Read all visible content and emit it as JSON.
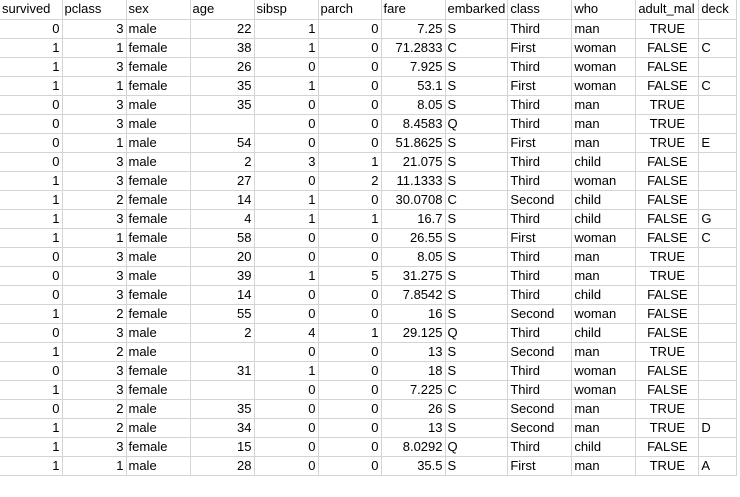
{
  "sheet": {
    "columns": [
      {
        "key": "survived",
        "label": "survived",
        "align": "num"
      },
      {
        "key": "pclass",
        "label": "pclass",
        "align": "num"
      },
      {
        "key": "sex",
        "label": "sex",
        "align": "txt"
      },
      {
        "key": "age",
        "label": "age",
        "align": "num"
      },
      {
        "key": "sibsp",
        "label": "sibsp",
        "align": "num"
      },
      {
        "key": "parch",
        "label": "parch",
        "align": "num"
      },
      {
        "key": "fare",
        "label": "fare",
        "align": "num"
      },
      {
        "key": "embarked",
        "label": "embarked",
        "align": "txt"
      },
      {
        "key": "class",
        "label": "class",
        "align": "txt"
      },
      {
        "key": "who",
        "label": "who",
        "align": "txt"
      },
      {
        "key": "adult_male",
        "label": "adult_mal",
        "align": "bool"
      },
      {
        "key": "deck",
        "label": "deck",
        "align": "txt"
      }
    ],
    "rows": [
      [
        "0",
        "3",
        "male",
        "22",
        "1",
        "0",
        "7.25",
        "S",
        "Third",
        "man",
        "TRUE",
        ""
      ],
      [
        "1",
        "1",
        "female",
        "38",
        "1",
        "0",
        "71.2833",
        "C",
        "First",
        "woman",
        "FALSE",
        "C"
      ],
      [
        "1",
        "3",
        "female",
        "26",
        "0",
        "0",
        "7.925",
        "S",
        "Third",
        "woman",
        "FALSE",
        ""
      ],
      [
        "1",
        "1",
        "female",
        "35",
        "1",
        "0",
        "53.1",
        "S",
        "First",
        "woman",
        "FALSE",
        "C"
      ],
      [
        "0",
        "3",
        "male",
        "35",
        "0",
        "0",
        "8.05",
        "S",
        "Third",
        "man",
        "TRUE",
        ""
      ],
      [
        "0",
        "3",
        "male",
        "",
        "0",
        "0",
        "8.4583",
        "Q",
        "Third",
        "man",
        "TRUE",
        ""
      ],
      [
        "0",
        "1",
        "male",
        "54",
        "0",
        "0",
        "51.8625",
        "S",
        "First",
        "man",
        "TRUE",
        "E"
      ],
      [
        "0",
        "3",
        "male",
        "2",
        "3",
        "1",
        "21.075",
        "S",
        "Third",
        "child",
        "FALSE",
        ""
      ],
      [
        "1",
        "3",
        "female",
        "27",
        "0",
        "2",
        "11.1333",
        "S",
        "Third",
        "woman",
        "FALSE",
        ""
      ],
      [
        "1",
        "2",
        "female",
        "14",
        "1",
        "0",
        "30.0708",
        "C",
        "Second",
        "child",
        "FALSE",
        ""
      ],
      [
        "1",
        "3",
        "female",
        "4",
        "1",
        "1",
        "16.7",
        "S",
        "Third",
        "child",
        "FALSE",
        "G"
      ],
      [
        "1",
        "1",
        "female",
        "58",
        "0",
        "0",
        "26.55",
        "S",
        "First",
        "woman",
        "FALSE",
        "C"
      ],
      [
        "0",
        "3",
        "male",
        "20",
        "0",
        "0",
        "8.05",
        "S",
        "Third",
        "man",
        "TRUE",
        ""
      ],
      [
        "0",
        "3",
        "male",
        "39",
        "1",
        "5",
        "31.275",
        "S",
        "Third",
        "man",
        "TRUE",
        ""
      ],
      [
        "0",
        "3",
        "female",
        "14",
        "0",
        "0",
        "7.8542",
        "S",
        "Third",
        "child",
        "FALSE",
        ""
      ],
      [
        "1",
        "2",
        "female",
        "55",
        "0",
        "0",
        "16",
        "S",
        "Second",
        "woman",
        "FALSE",
        ""
      ],
      [
        "0",
        "3",
        "male",
        "2",
        "4",
        "1",
        "29.125",
        "Q",
        "Third",
        "child",
        "FALSE",
        ""
      ],
      [
        "1",
        "2",
        "male",
        "",
        "0",
        "0",
        "13",
        "S",
        "Second",
        "man",
        "TRUE",
        ""
      ],
      [
        "0",
        "3",
        "female",
        "31",
        "1",
        "0",
        "18",
        "S",
        "Third",
        "woman",
        "FALSE",
        ""
      ],
      [
        "1",
        "3",
        "female",
        "",
        "0",
        "0",
        "7.225",
        "C",
        "Third",
        "woman",
        "FALSE",
        ""
      ],
      [
        "0",
        "2",
        "male",
        "35",
        "0",
        "0",
        "26",
        "S",
        "Second",
        "man",
        "TRUE",
        ""
      ],
      [
        "1",
        "2",
        "male",
        "34",
        "0",
        "0",
        "13",
        "S",
        "Second",
        "man",
        "TRUE",
        "D"
      ],
      [
        "1",
        "3",
        "female",
        "15",
        "0",
        "0",
        "8.0292",
        "Q",
        "Third",
        "child",
        "FALSE",
        ""
      ],
      [
        "1",
        "1",
        "male",
        "28",
        "0",
        "0",
        "35.5",
        "S",
        "First",
        "man",
        "TRUE",
        "A"
      ]
    ]
  },
  "colors": {
    "gridline": "#d4d4d4",
    "background": "#ffffff",
    "text": "#000000"
  }
}
